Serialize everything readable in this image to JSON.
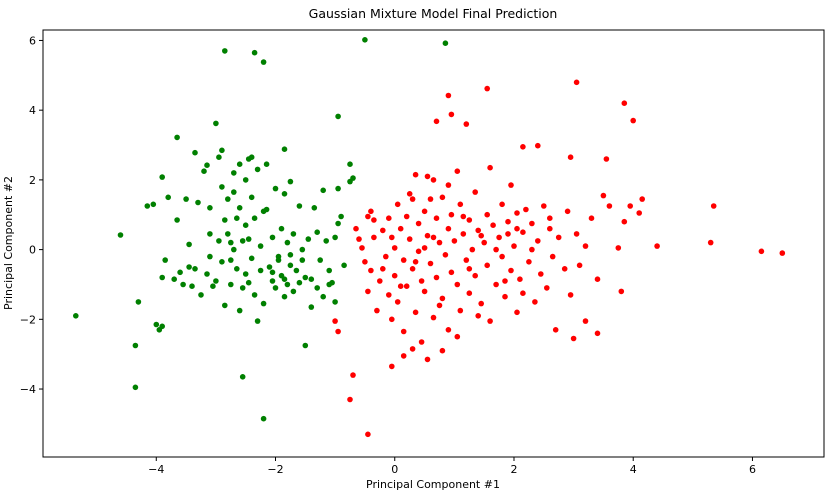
{
  "chart_data": {
    "type": "scatter",
    "title": "Gaussian Mixture Model Final Prediction",
    "xlabel": "Principal Component #1",
    "ylabel": "Principal Component #2",
    "xlim": [
      -5.9,
      7.2
    ],
    "ylim": [
      -5.95,
      6.3
    ],
    "xticks": [
      -4,
      -2,
      0,
      2,
      4,
      6
    ],
    "yticks": [
      -4,
      -2,
      0,
      2,
      4,
      6
    ],
    "xtick_labels": [
      "−4",
      "−2",
      "0",
      "2",
      "4",
      "6"
    ],
    "ytick_labels": [
      "−4",
      "−2",
      "0",
      "2",
      "4",
      "6"
    ],
    "grid": false,
    "series": [
      {
        "color": "#008000",
        "points": [
          [
            -5.35,
            -1.9
          ],
          [
            -4.6,
            0.42
          ],
          [
            -4.35,
            -2.75
          ],
          [
            -4.35,
            -3.95
          ],
          [
            -4.3,
            -1.5
          ],
          [
            -4.15,
            1.25
          ],
          [
            -4.05,
            1.3
          ],
          [
            -4.0,
            -2.15
          ],
          [
            -3.95,
            -2.3
          ],
          [
            -3.9,
            -2.2
          ],
          [
            -3.9,
            2.08
          ],
          [
            -3.85,
            -0.3
          ],
          [
            -3.9,
            -0.8
          ],
          [
            -3.8,
            1.5
          ],
          [
            -3.7,
            -0.85
          ],
          [
            -3.65,
            3.22
          ],
          [
            -3.65,
            0.85
          ],
          [
            -3.6,
            -0.65
          ],
          [
            -3.55,
            -1.0
          ],
          [
            -3.5,
            1.45
          ],
          [
            -3.45,
            -0.5
          ],
          [
            -3.4,
            -1.05
          ],
          [
            -3.35,
            2.78
          ],
          [
            -3.35,
            -0.55
          ],
          [
            -3.3,
            1.35
          ],
          [
            -3.25,
            -1.3
          ],
          [
            -3.2,
            2.25
          ],
          [
            -3.15,
            -0.7
          ],
          [
            -3.15,
            2.42
          ],
          [
            -3.1,
            1.2
          ],
          [
            -3.1,
            -0.2
          ],
          [
            -3.05,
            -1.05
          ],
          [
            -3.0,
            3.62
          ],
          [
            -3.0,
            -0.9
          ],
          [
            -2.95,
            2.65
          ],
          [
            -2.95,
            0.25
          ],
          [
            -2.9,
            2.85
          ],
          [
            -2.9,
            1.8
          ],
          [
            -2.9,
            -0.35
          ],
          [
            -2.85,
            0.85
          ],
          [
            -2.85,
            -1.6
          ],
          [
            -2.8,
            1.45
          ],
          [
            -2.8,
            0.45
          ],
          [
            -2.75,
            -0.3
          ],
          [
            -2.75,
            -1.0
          ],
          [
            -2.7,
            2.2
          ],
          [
            -2.7,
            1.65
          ],
          [
            -2.7,
            0.0
          ],
          [
            -2.65,
            0.9
          ],
          [
            -2.65,
            -0.55
          ],
          [
            -2.6,
            2.45
          ],
          [
            -2.6,
            1.2
          ],
          [
            -2.55,
            0.25
          ],
          [
            -2.55,
            -1.1
          ],
          [
            -2.5,
            2.0
          ],
          [
            -2.5,
            0.7
          ],
          [
            -2.5,
            -0.7
          ],
          [
            -2.45,
            2.6
          ],
          [
            -2.45,
            0.3
          ],
          [
            -2.4,
            2.65
          ],
          [
            -2.4,
            1.5
          ],
          [
            -2.4,
            -0.25
          ],
          [
            -2.35,
            0.9
          ],
          [
            -2.35,
            -1.3
          ],
          [
            -2.3,
            -2.05
          ],
          [
            -2.3,
            2.3
          ],
          [
            -2.25,
            0.1
          ],
          [
            -2.25,
            -0.6
          ],
          [
            -2.2,
            1.1
          ],
          [
            -2.2,
            -1.55
          ],
          [
            -2.15,
            2.45
          ],
          [
            -2.1,
            -0.5
          ],
          [
            -2.05,
            0.35
          ],
          [
            -2.05,
            -0.9
          ],
          [
            -2.0,
            1.75
          ],
          [
            -2.0,
            -1.1
          ],
          [
            -1.95,
            -0.2
          ],
          [
            -1.9,
            0.6
          ],
          [
            -1.9,
            -0.75
          ],
          [
            -1.85,
            2.88
          ],
          [
            -1.85,
            1.6
          ],
          [
            -1.85,
            -1.35
          ],
          [
            -1.8,
            0.2
          ],
          [
            -1.8,
            -1.0
          ],
          [
            -1.75,
            1.95
          ],
          [
            -1.75,
            -0.45
          ],
          [
            -1.7,
            0.45
          ],
          [
            -1.7,
            -1.2
          ],
          [
            -1.65,
            -0.6
          ],
          [
            -1.6,
            1.25
          ],
          [
            -1.6,
            -0.95
          ],
          [
            -1.55,
            0.0
          ],
          [
            -1.5,
            -0.8
          ],
          [
            -1.5,
            -2.75
          ],
          [
            -1.45,
            0.3
          ],
          [
            -1.4,
            -0.85
          ],
          [
            -1.4,
            -1.65
          ],
          [
            -1.35,
            1.2
          ],
          [
            -1.3,
            -1.1
          ],
          [
            -1.3,
            0.5
          ],
          [
            -1.25,
            -0.3
          ],
          [
            -1.2,
            1.7
          ],
          [
            -1.2,
            -1.35
          ],
          [
            -1.15,
            0.25
          ],
          [
            -1.1,
            -0.6
          ],
          [
            -1.1,
            -1.0
          ],
          [
            -1.0,
            0.35
          ],
          [
            -1.0,
            -1.5
          ],
          [
            -0.95,
            1.75
          ],
          [
            -0.95,
            0.75
          ],
          [
            -0.9,
            0.95
          ],
          [
            -0.85,
            -0.45
          ],
          [
            -0.75,
            2.45
          ],
          [
            -0.75,
            1.95
          ],
          [
            -0.7,
            2.05
          ],
          [
            -0.95,
            3.82
          ],
          [
            -2.35,
            5.65
          ],
          [
            -2.85,
            5.7
          ],
          [
            -2.2,
            5.38
          ],
          [
            -0.5,
            6.02
          ],
          [
            0.85,
            5.92
          ],
          [
            -2.55,
            -3.65
          ],
          [
            -2.2,
            -4.85
          ],
          [
            -1.95,
            -0.3
          ],
          [
            -2.75,
            0.2
          ],
          [
            -3.1,
            0.45
          ],
          [
            -1.75,
            -0.15
          ],
          [
            -1.55,
            -0.3
          ],
          [
            -2.05,
            -0.65
          ],
          [
            -2.45,
            -0.95
          ],
          [
            -1.85,
            -0.85
          ],
          [
            -2.6,
            -1.75
          ],
          [
            -3.45,
            0.15
          ],
          [
            -2.15,
            1.15
          ],
          [
            -1.05,
            -0.95
          ]
        ]
      },
      {
        "color": "#ff0000",
        "points": [
          [
            -0.65,
            0.6
          ],
          [
            -0.6,
            0.3
          ],
          [
            -0.55,
            0.05
          ],
          [
            -0.5,
            -0.35
          ],
          [
            -0.45,
            0.95
          ],
          [
            -0.45,
            -1.2
          ],
          [
            -0.4,
            1.1
          ],
          [
            -0.4,
            -0.6
          ],
          [
            -0.35,
            0.85
          ],
          [
            -0.3,
            -1.75
          ],
          [
            -0.25,
            -0.9
          ],
          [
            -0.2,
            0.55
          ],
          [
            -0.15,
            -0.2
          ],
          [
            -0.1,
            0.9
          ],
          [
            -0.1,
            -1.3
          ],
          [
            -0.05,
            0.35
          ],
          [
            -0.05,
            -2.0
          ],
          [
            0.0,
            0.05
          ],
          [
            0.0,
            -0.75
          ],
          [
            0.05,
            1.3
          ],
          [
            0.05,
            -1.5
          ],
          [
            0.1,
            0.6
          ],
          [
            0.15,
            -0.3
          ],
          [
            0.15,
            -2.35
          ],
          [
            0.2,
            0.95
          ],
          [
            0.2,
            -1.05
          ],
          [
            0.25,
            0.3
          ],
          [
            0.3,
            1.45
          ],
          [
            0.3,
            -0.55
          ],
          [
            0.35,
            -1.8
          ],
          [
            0.4,
            0.75
          ],
          [
            0.4,
            -0.05
          ],
          [
            0.45,
            -2.65
          ],
          [
            0.5,
            1.1
          ],
          [
            0.5,
            -1.2
          ],
          [
            0.55,
            0.4
          ],
          [
            0.6,
            -0.4
          ],
          [
            0.65,
            2.0
          ],
          [
            0.65,
            -1.95
          ],
          [
            0.7,
            0.9
          ],
          [
            0.7,
            -0.8
          ],
          [
            0.75,
            0.2
          ],
          [
            0.8,
            1.5
          ],
          [
            0.8,
            -1.4
          ],
          [
            0.85,
            -0.15
          ],
          [
            0.9,
            0.6
          ],
          [
            0.9,
            -2.3
          ],
          [
            0.95,
            1.0
          ],
          [
            0.95,
            -0.65
          ],
          [
            1.0,
            0.25
          ],
          [
            1.05,
            -1.0
          ],
          [
            1.1,
            1.3
          ],
          [
            1.1,
            -1.75
          ],
          [
            1.15,
            0.45
          ],
          [
            1.2,
            -0.3
          ],
          [
            1.25,
            0.85
          ],
          [
            1.25,
            -1.25
          ],
          [
            1.3,
            0.0
          ],
          [
            1.35,
            1.65
          ],
          [
            1.35,
            -0.75
          ],
          [
            1.4,
            0.55
          ],
          [
            1.45,
            -1.55
          ],
          [
            1.5,
            0.2
          ],
          [
            1.55,
            1.0
          ],
          [
            1.55,
            -0.45
          ],
          [
            1.6,
            -2.05
          ],
          [
            1.65,
            0.7
          ],
          [
            1.7,
            -1.0
          ],
          [
            1.75,
            0.35
          ],
          [
            1.8,
            1.3
          ],
          [
            1.8,
            -0.2
          ],
          [
            1.85,
            -1.35
          ],
          [
            1.9,
            0.8
          ],
          [
            1.95,
            -0.6
          ],
          [
            2.0,
            0.1
          ],
          [
            2.05,
            1.05
          ],
          [
            2.05,
            -1.8
          ],
          [
            2.1,
            -0.85
          ],
          [
            2.15,
            0.5
          ],
          [
            2.2,
            1.15
          ],
          [
            2.25,
            -0.35
          ],
          [
            2.3,
            0.75
          ],
          [
            2.35,
            -1.5
          ],
          [
            2.4,
            0.25
          ],
          [
            2.45,
            -0.7
          ],
          [
            2.5,
            1.25
          ],
          [
            2.55,
            -1.1
          ],
          [
            2.6,
            0.6
          ],
          [
            2.7,
            -2.3
          ],
          [
            2.75,
            0.35
          ],
          [
            2.85,
            -0.55
          ],
          [
            2.9,
            1.1
          ],
          [
            2.95,
            2.65
          ],
          [
            3.0,
            -2.55
          ],
          [
            3.05,
            0.45
          ],
          [
            3.1,
            -0.45
          ],
          [
            3.2,
            -2.05
          ],
          [
            3.3,
            0.9
          ],
          [
            3.4,
            -0.85
          ],
          [
            3.5,
            1.55
          ],
          [
            3.55,
            2.6
          ],
          [
            3.6,
            1.25
          ],
          [
            3.75,
            0.05
          ],
          [
            3.8,
            -1.2
          ],
          [
            3.85,
            0.8
          ],
          [
            3.95,
            1.25
          ],
          [
            4.1,
            1.05
          ],
          [
            4.15,
            1.45
          ],
          [
            4.4,
            0.1
          ],
          [
            5.3,
            0.2
          ],
          [
            5.35,
            1.25
          ],
          [
            6.15,
            -0.05
          ],
          [
            6.5,
            -0.1
          ],
          [
            3.05,
            4.8
          ],
          [
            3.85,
            4.2
          ],
          [
            4.0,
            3.7
          ],
          [
            1.55,
            4.62
          ],
          [
            0.9,
            4.42
          ],
          [
            0.7,
            3.68
          ],
          [
            1.2,
            3.6
          ],
          [
            0.95,
            3.88
          ],
          [
            2.15,
            2.95
          ],
          [
            2.4,
            2.98
          ],
          [
            -0.7,
            -3.6
          ],
          [
            -0.75,
            -4.3
          ],
          [
            -0.45,
            -5.3
          ],
          [
            -0.05,
            -3.35
          ],
          [
            0.15,
            -3.05
          ],
          [
            0.3,
            -2.85
          ],
          [
            0.55,
            -3.15
          ],
          [
            0.8,
            -2.9
          ],
          [
            1.05,
            -2.5
          ],
          [
            -0.95,
            -2.35
          ],
          [
            -1.0,
            -2.05
          ],
          [
            0.35,
            2.15
          ],
          [
            0.55,
            2.1
          ],
          [
            0.9,
            1.85
          ],
          [
            1.95,
            1.85
          ],
          [
            1.6,
            2.35
          ],
          [
            0.25,
            1.6
          ],
          [
            1.05,
            2.25
          ],
          [
            0.6,
            1.45
          ],
          [
            -0.35,
            0.35
          ],
          [
            0.45,
            -0.9
          ],
          [
            1.25,
            -0.55
          ],
          [
            1.7,
            0.0
          ],
          [
            2.15,
            -1.25
          ],
          [
            2.65,
            -0.2
          ],
          [
            2.3,
            0.0
          ],
          [
            1.4,
            -1.9
          ],
          [
            0.1,
            -1.05
          ],
          [
            0.75,
            -1.6
          ],
          [
            1.9,
            0.45
          ],
          [
            2.6,
            0.9
          ],
          [
            3.2,
            0.1
          ],
          [
            0.5,
            0.05
          ],
          [
            1.85,
            -0.9
          ],
          [
            1.15,
            0.95
          ],
          [
            0.35,
            -0.35
          ],
          [
            -0.2,
            -0.55
          ],
          [
            2.05,
            0.6
          ],
          [
            1.45,
            0.4
          ],
          [
            0.65,
            0.35
          ],
          [
            2.95,
            -1.3
          ],
          [
            3.4,
            -2.4
          ]
        ]
      }
    ]
  }
}
